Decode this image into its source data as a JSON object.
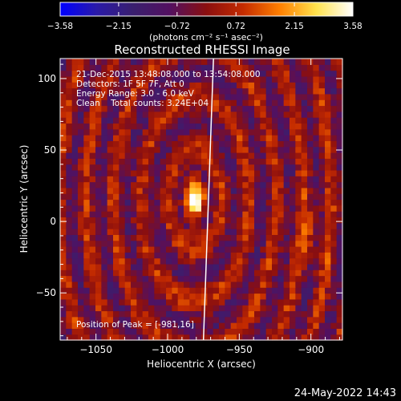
{
  "chart_data": {
    "type": "heatmap",
    "title": "Reconstructed RHESSI Image",
    "xlabel": "Heliocentric X (arcsec)",
    "ylabel": "Heliocentric Y (arcsec)",
    "xlim": [
      -1075,
      -878
    ],
    "ylim": [
      -83,
      114
    ],
    "xticks": [
      -1050,
      -1000,
      -950,
      -900
    ],
    "xtick_labels": [
      "−1050",
      "−1000",
      "−950",
      "−900"
    ],
    "yticks": [
      -50,
      0,
      50,
      100
    ],
    "ytick_labels": [
      "−50",
      "0",
      "50",
      "100"
    ],
    "colorbar": {
      "min": -3.58,
      "max": 3.58,
      "ticks": [
        -3.58,
        -2.15,
        -0.72,
        0.72,
        2.15,
        3.58
      ],
      "tick_labels": [
        "−3.58",
        "−2.15",
        "−0.72",
        "0.72",
        "2.15",
        "3.58"
      ],
      "unit_label": "(photons cm⁻² s⁻¹ asec⁻²)",
      "colors": [
        "#0000ff",
        "#2a1aa8",
        "#3a1f6e",
        "#531060",
        "#8b0f0f",
        "#c42b00",
        "#ff7f00",
        "#ffe24d",
        "#ffffff"
      ]
    },
    "annotations": [
      "21-Dec-2015 13:48:08.000 to 13:54:08.000",
      "Detectors: 1F 5F 7F, Att 0",
      "Energy Range: 3.0 - 6.0 keV",
      "Clean    Total counts: 3.24E+04"
    ],
    "peak_label": "Position of Peak = [-981,16]",
    "peak": {
      "x": -981,
      "y": 16
    },
    "limb_line": {
      "x_top": -968,
      "x_bottom": -975
    },
    "grid": false,
    "legend": "none",
    "nx": 48,
    "ny": 48
  },
  "footer": {
    "timestamp": "24-May-2022 14:43"
  }
}
